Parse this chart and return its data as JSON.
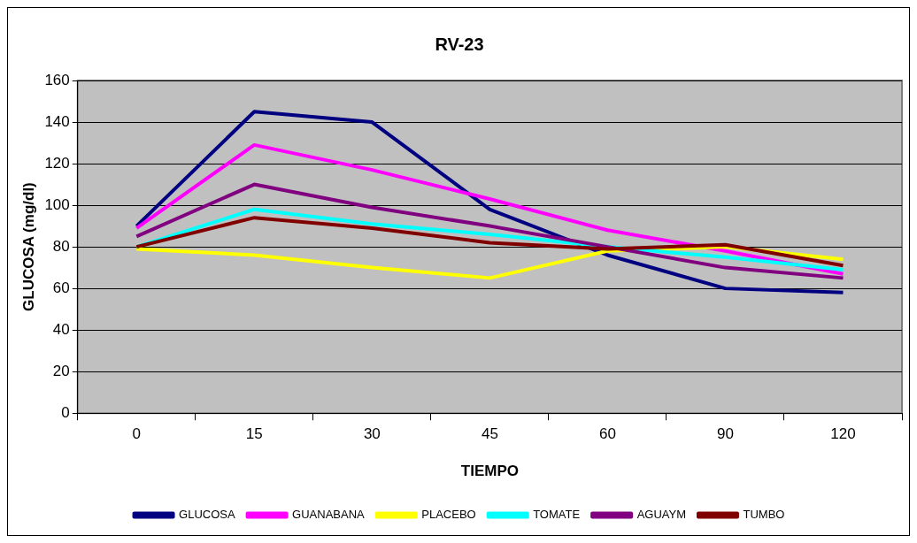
{
  "chart_data": {
    "type": "line",
    "title": "RV-23",
    "xlabel": "TIEMPO",
    "ylabel": "GLUCOSA (mg/dl)",
    "categories": [
      "0",
      "15",
      "30",
      "45",
      "60",
      "90",
      "120"
    ],
    "series": [
      {
        "name": "GLUCOSA",
        "color": "#000080",
        "values": [
          90,
          145,
          140,
          98,
          76,
          60,
          58
        ]
      },
      {
        "name": "GUANABANA",
        "color": "#ff00ff",
        "values": [
          89,
          129,
          117,
          103,
          88,
          78,
          67
        ]
      },
      {
        "name": "PLACEBO",
        "color": "#ffff00",
        "values": [
          79,
          76,
          70,
          65,
          78,
          80,
          74
        ]
      },
      {
        "name": "TOMATE",
        "color": "#00ffff",
        "values": [
          80,
          98,
          91,
          86,
          80,
          75,
          69
        ]
      },
      {
        "name": "AGUAYM",
        "color": "#800080",
        "values": [
          85,
          110,
          99,
          90,
          80,
          70,
          65
        ]
      },
      {
        "name": "TUMBO",
        "color": "#800000",
        "values": [
          80,
          94,
          89,
          82,
          79,
          81,
          71
        ]
      }
    ],
    "ylim": [
      0,
      160
    ],
    "yticks": [
      0,
      20,
      40,
      60,
      80,
      100,
      120,
      140,
      160
    ],
    "grid": "y",
    "legend": "bottom",
    "marker": "none",
    "line_style": "solid"
  }
}
